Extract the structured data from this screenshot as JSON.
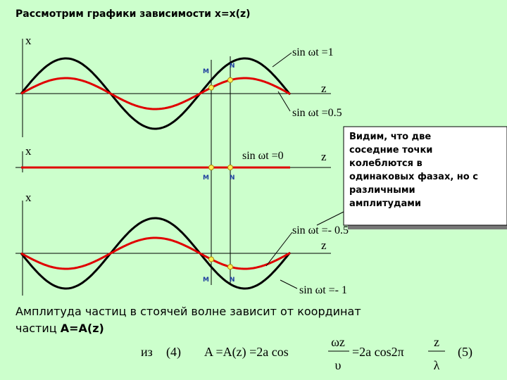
{
  "title": "Рассмотрим графики зависимости x=x(z)",
  "panels": [
    {
      "x_label": "x",
      "z_label": "z",
      "point_m": "M",
      "point_n": "N",
      "labels": [
        "sin ωt =1",
        "sin ωt =0.5"
      ]
    },
    {
      "x_label": "x",
      "z_label": "z",
      "point_m": "M",
      "point_n": "N",
      "labels": [
        "sin ωt =0"
      ]
    },
    {
      "x_label": "x",
      "z_label": "z",
      "point_m": "M",
      "point_n": "N",
      "labels": [
        "sin ωt =- 0.5",
        "sin ωt =- 1"
      ]
    }
  ],
  "callout": [
    "Видим, что две",
    "соседние точки",
    "колеблются в",
    "одинаковых фазах, но с",
    "различными",
    "амплитудами"
  ],
  "conclusion": {
    "line1": "Амплитуда частиц в стоячей волне зависит от координат",
    "line2": "частиц ",
    "bold": "A=A(z)"
  },
  "formula": {
    "prefix": "из",
    "ref": "(4)",
    "part1": "A =A(z) =2a cos",
    "frac1_num": "ωz",
    "frac1_den": "υ",
    "part2": "=2a cos2π",
    "frac2_num": "z",
    "frac2_den": "λ",
    "number": "(5)"
  }
}
